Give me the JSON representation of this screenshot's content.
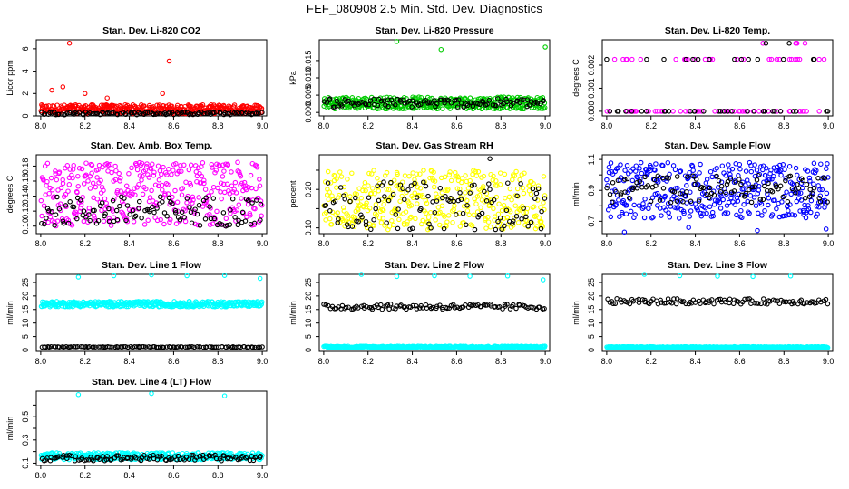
{
  "title": "FEF_080908  2.5 Min. Std. Dev. Diagnostics",
  "chart_data": [
    {
      "type": "scatter",
      "title": "Stan. Dev. Li-820 CO2",
      "ylabel": "Licor ppm",
      "xlim": [
        7.98,
        9.02
      ],
      "ylim": [
        0,
        6.8
      ],
      "xticks": [
        8.0,
        8.2,
        8.4,
        8.6,
        8.8,
        9.0
      ],
      "xtick_labels": [
        "8.0",
        "8.2",
        "8.4",
        "8.6",
        "8.8",
        "9.0"
      ],
      "yticks": [
        0,
        2,
        4,
        6
      ],
      "ytick_labels": [
        "0",
        "2",
        "4",
        "6"
      ],
      "series": [
        {
          "color": "#ff0000",
          "x_range": [
            8.0,
            9.0
          ],
          "typical": [
            0.2,
            1.0
          ],
          "outliers": [
            [
              8.05,
              2.3
            ],
            [
              8.1,
              2.6
            ],
            [
              8.13,
              6.5
            ],
            [
              8.2,
              2.0
            ],
            [
              8.3,
              1.6
            ],
            [
              8.55,
              2.0
            ],
            [
              8.58,
              4.9
            ],
            [
              8.98,
              0.9
            ]
          ]
        },
        {
          "color": "#000000",
          "x_range": [
            8.0,
            9.0
          ],
          "typical": [
            0.1,
            0.35
          ]
        }
      ]
    },
    {
      "type": "scatter",
      "title": "Stan. Dev. Li-820 Pressure",
      "ylabel": "kPa",
      "xlim": [
        7.98,
        9.02
      ],
      "ylim": [
        -0.001,
        0.021
      ],
      "xticks": [
        8.0,
        8.2,
        8.4,
        8.6,
        8.8,
        9.0
      ],
      "xtick_labels": [
        "8.0",
        "8.2",
        "8.4",
        "8.6",
        "8.8",
        "9.0"
      ],
      "yticks": [
        0.0,
        0.005,
        0.01,
        0.015
      ],
      "ytick_labels": [
        "0.000",
        "0.005",
        "0.010",
        "0.015"
      ],
      "series": [
        {
          "color": "#00cc00",
          "x_range": [
            8.0,
            9.0
          ],
          "typical": [
            0.001,
            0.0045
          ],
          "outliers": [
            [
              8.33,
              0.0205
            ],
            [
              8.53,
              0.0182
            ],
            [
              9.0,
              0.0189
            ]
          ]
        },
        {
          "color": "#000000",
          "x_range": [
            8.0,
            9.0
          ],
          "typical": [
            0.0015,
            0.004
          ]
        }
      ]
    },
    {
      "type": "scatter",
      "title": "Stan. Dev. Li-820 Temp.",
      "ylabel": "degrees C",
      "xlim": [
        7.98,
        9.02
      ],
      "ylim": [
        -0.0002,
        0.0031
      ],
      "xticks": [
        8.0,
        8.2,
        8.4,
        8.6,
        8.8,
        9.0
      ],
      "xtick_labels": [
        "8.0",
        "8.2",
        "8.4",
        "8.6",
        "8.8",
        "9.0"
      ],
      "yticks": [
        0.0,
        0.001,
        0.002
      ],
      "ytick_labels": [
        "0.000",
        "0.001",
        "0.002"
      ],
      "series": [
        {
          "color": "#ff00ff",
          "levels": [
            0,
            0.00225,
            0.00295
          ],
          "x_range": [
            8.0,
            9.0
          ]
        },
        {
          "color": "#000000",
          "levels": [
            0,
            0.00225,
            0.00295
          ],
          "x_range": [
            8.0,
            9.0
          ]
        }
      ]
    },
    {
      "type": "scatter",
      "title": "Stan. Dev. Amb. Box Temp.",
      "ylabel": "degrees C",
      "xlim": [
        7.98,
        9.02
      ],
      "ylim": [
        0.09,
        0.195
      ],
      "xticks": [
        8.0,
        8.2,
        8.4,
        8.6,
        8.8,
        9.0
      ],
      "xtick_labels": [
        "8.0",
        "8.2",
        "8.4",
        "8.6",
        "8.8",
        "9.0"
      ],
      "yticks": [
        0.1,
        0.12,
        0.14,
        0.16,
        0.18
      ],
      "ytick_labels": [
        "0.10",
        "0.12",
        "0.14",
        "0.16",
        "0.18"
      ],
      "series": [
        {
          "color": "#ff00ff",
          "x_range": [
            8.0,
            9.0
          ],
          "typical": [
            0.1,
            0.185
          ]
        },
        {
          "color": "#000000",
          "x_range": [
            8.0,
            9.0
          ],
          "typical": [
            0.1,
            0.14
          ]
        }
      ]
    },
    {
      "type": "scatter",
      "title": "Stan. Dev. Gas Stream RH",
      "ylabel": "percent",
      "xlim": [
        7.98,
        9.02
      ],
      "ylim": [
        0.085,
        0.29
      ],
      "xticks": [
        8.0,
        8.2,
        8.4,
        8.6,
        8.8,
        9.0
      ],
      "xtick_labels": [
        "8.0",
        "8.2",
        "8.4",
        "8.6",
        "8.8",
        "9.0"
      ],
      "yticks": [
        0.1,
        0.15,
        0.2,
        0.25
      ],
      "ytick_labels": [
        "0.10",
        "",
        "0.20",
        ""
      ],
      "series": [
        {
          "color": "#ffff00",
          "x_range": [
            8.0,
            9.0
          ],
          "typical": [
            0.095,
            0.25
          ]
        },
        {
          "color": "#000000",
          "x_range": [
            8.0,
            9.0
          ],
          "typical": [
            0.095,
            0.22
          ],
          "outliers": [
            [
              8.75,
              0.28
            ]
          ]
        }
      ]
    },
    {
      "type": "scatter",
      "title": "Stan. Dev. Sample Flow",
      "ylabel": "ml/min",
      "xlim": [
        7.98,
        9.02
      ],
      "ylim": [
        0.62,
        1.13
      ],
      "xticks": [
        8.0,
        8.2,
        8.4,
        8.6,
        8.8,
        9.0
      ],
      "xtick_labels": [
        "8.0",
        "8.2",
        "8.4",
        "8.6",
        "8.8",
        "9.0"
      ],
      "yticks": [
        0.7,
        0.8,
        0.9,
        1.0,
        1.1
      ],
      "ytick_labels": [
        "0.7",
        "",
        "0.9",
        "",
        "1.1"
      ],
      "series": [
        {
          "color": "#0000ff",
          "x_range": [
            8.0,
            9.0
          ],
          "typical": [
            0.72,
            1.08
          ],
          "outliers": [
            [
              8.68,
              0.64
            ],
            [
              8.37,
              0.66
            ],
            [
              8.08,
              0.63
            ],
            [
              8.99,
              0.65
            ]
          ]
        },
        {
          "color": "#000000",
          "x_range": [
            8.0,
            9.0
          ],
          "typical": [
            0.82,
            1.0
          ]
        }
      ]
    },
    {
      "type": "scatter",
      "title": "Stan. Dev. Line 1 Flow",
      "ylabel": "ml/min",
      "xlim": [
        7.98,
        9.02
      ],
      "ylim": [
        -0.5,
        28
      ],
      "xticks": [
        8.0,
        8.2,
        8.4,
        8.6,
        8.8,
        9.0
      ],
      "xtick_labels": [
        "8.0",
        "8.2",
        "8.4",
        "8.6",
        "8.8",
        "9.0"
      ],
      "yticks": [
        0,
        5,
        10,
        15,
        20,
        25
      ],
      "ytick_labels": [
        "0",
        "5",
        "10",
        "15",
        "20",
        "25"
      ],
      "series": [
        {
          "color": "#00ffff",
          "x_range": [
            8.0,
            9.0
          ],
          "typical": [
            16,
            18
          ],
          "outliers": [
            [
              8.17,
              27
            ],
            [
              8.33,
              27.5
            ],
            [
              8.5,
              27.8
            ],
            [
              8.66,
              27.5
            ],
            [
              8.83,
              27.6
            ],
            [
              8.99,
              26.5
            ]
          ]
        },
        {
          "color": "#000000",
          "x_range": [
            8.0,
            9.0
          ],
          "typical": [
            1,
            1.3
          ]
        }
      ]
    },
    {
      "type": "scatter",
      "title": "Stan. Dev. Line 2 Flow",
      "ylabel": "ml/min",
      "xlim": [
        7.98,
        9.02
      ],
      "ylim": [
        -0.5,
        28
      ],
      "xticks": [
        8.0,
        8.2,
        8.4,
        8.6,
        8.8,
        9.0
      ],
      "xtick_labels": [
        "8.0",
        "8.2",
        "8.4",
        "8.6",
        "8.8",
        "9.0"
      ],
      "yticks": [
        0,
        5,
        10,
        15,
        20,
        25
      ],
      "ytick_labels": [
        "0",
        "5",
        "10",
        "15",
        "20",
        "25"
      ],
      "series": [
        {
          "color": "#00ffff",
          "x_range": [
            8.0,
            9.0
          ],
          "typical": [
            0.8,
            1.5
          ],
          "outliers": [
            [
              8.17,
              28
            ],
            [
              8.33,
              27.2
            ],
            [
              8.5,
              27.5
            ],
            [
              8.66,
              27.3
            ],
            [
              8.83,
              27.4
            ],
            [
              8.99,
              26
            ]
          ]
        },
        {
          "color": "#000000",
          "x_range": [
            8.0,
            9.0
          ],
          "typical": [
            15,
            17
          ]
        }
      ]
    },
    {
      "type": "scatter",
      "title": "Stan. Dev. Line 3 Flow",
      "ylabel": "ml/min",
      "xlim": [
        7.98,
        9.02
      ],
      "ylim": [
        -0.5,
        28
      ],
      "xticks": [
        8.0,
        8.2,
        8.4,
        8.6,
        8.8,
        9.0
      ],
      "xtick_labels": [
        "8.0",
        "8.2",
        "8.4",
        "8.6",
        "8.8",
        "9.0"
      ],
      "yticks": [
        0,
        5,
        10,
        15,
        20,
        25
      ],
      "ytick_labels": [
        "0",
        "5",
        "10",
        "15",
        "20",
        "25"
      ],
      "series": [
        {
          "color": "#00ffff",
          "x_range": [
            8.0,
            9.0
          ],
          "typical": [
            0.8,
            1.3
          ],
          "outliers": [
            [
              8.17,
              28
            ],
            [
              8.33,
              27.5
            ],
            [
              8.5,
              27.3
            ],
            [
              8.66,
              27.2
            ],
            [
              8.83,
              27.4
            ]
          ]
        },
        {
          "color": "#000000",
          "x_range": [
            8.0,
            9.0
          ],
          "typical": [
            17,
            19
          ]
        }
      ]
    },
    {
      "type": "scatter",
      "title": "Stan. Dev. Line 4 (LT) Flow",
      "ylabel": "ml/min",
      "xlim": [
        7.98,
        9.02
      ],
      "ylim": [
        0.08,
        0.72
      ],
      "xticks": [
        8.0,
        8.2,
        8.4,
        8.6,
        8.8,
        9.0
      ],
      "xtick_labels": [
        "8.0",
        "8.2",
        "8.4",
        "8.6",
        "8.8",
        "9.0"
      ],
      "yticks": [
        0.1,
        0.2,
        0.3,
        0.4,
        0.5,
        0.6
      ],
      "ytick_labels": [
        "0.1",
        "",
        "0.3",
        "",
        "0.5",
        ""
      ],
      "series": [
        {
          "color": "#00ffff",
          "x_range": [
            8.0,
            9.0
          ],
          "typical": [
            0.13,
            0.19
          ],
          "outliers": [
            [
              8.17,
              0.69
            ],
            [
              8.5,
              0.7
            ],
            [
              8.83,
              0.68
            ]
          ]
        },
        {
          "color": "#000000",
          "x_range": [
            8.0,
            9.0
          ],
          "typical": [
            0.12,
            0.17
          ]
        }
      ]
    }
  ]
}
